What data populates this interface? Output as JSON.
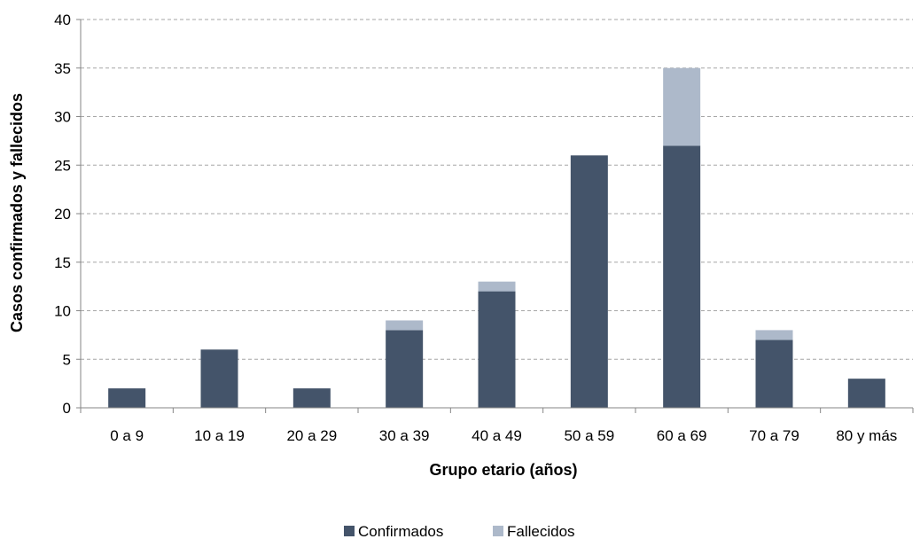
{
  "chart_data": {
    "type": "bar",
    "stacked": true,
    "categories": [
      "0 a 9",
      "10 a 19",
      "20 a 29",
      "30 a 39",
      "40 a 49",
      "50 a 59",
      "60 a 69",
      "70 a 79",
      "80 y más"
    ],
    "series": [
      {
        "name": "Confirmados",
        "values": [
          2,
          6,
          2,
          8,
          12,
          26,
          27,
          7,
          3
        ],
        "color": "#44546a"
      },
      {
        "name": "Fallecidos",
        "values": [
          0,
          0,
          0,
          1,
          1,
          0,
          8,
          1,
          0
        ],
        "color": "#adb9ca"
      }
    ],
    "xlabel": "Grupo etario (años)",
    "ylabel": "Casos confirmados y fallecidos",
    "ylim": [
      0,
      40
    ],
    "yticks": [
      0,
      5,
      10,
      15,
      20,
      25,
      30,
      35,
      40
    ],
    "grid": "horizontal-dashed",
    "legend_position": "bottom"
  }
}
